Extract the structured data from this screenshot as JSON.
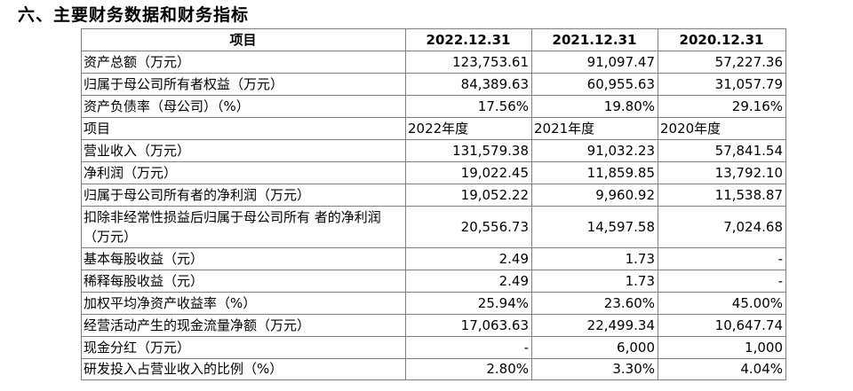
{
  "section_title": "六、主要财务数据和财务指标",
  "table": {
    "header": [
      "项目",
      "2022.12.31",
      "2021.12.31",
      "2020.12.31"
    ],
    "balance_rows": [
      {
        "label": "资产总额（万元）",
        "v1": "123,753.61",
        "v2": "91,097.47",
        "v3": "57,227.36"
      },
      {
        "label": "归属于母公司所有者权益（万元）",
        "v1": "84,389.63",
        "v2": "60,955.63",
        "v3": "31,057.79"
      },
      {
        "label": "资产负债率（母公司）（%）",
        "v1": "17.56%",
        "v2": "19.80%",
        "v3": "29.16%"
      }
    ],
    "subheader": [
      "项目",
      "2022年度",
      "2021年度",
      "2020年度"
    ],
    "income_rows": [
      {
        "label": "营业收入（万元）",
        "v1": "131,579.38",
        "v2": "91,032.23",
        "v3": "57,841.54"
      },
      {
        "label": "净利润（万元）",
        "v1": "19,022.45",
        "v2": "11,859.85",
        "v3": "13,792.10"
      },
      {
        "label": "归属于母公司所有者的净利润（万元）",
        "v1": "19,052.22",
        "v2": "9,960.92",
        "v3": "11,538.87"
      },
      {
        "label": "扣除非经常性损益后归属于母公司所有 者的净利润（万元）",
        "v1": "20,556.73",
        "v2": "14,597.58",
        "v3": "7,024.68"
      },
      {
        "label": "基本每股收益（元）",
        "v1": "2.49",
        "v2": "1.73",
        "v3": "-"
      },
      {
        "label": "稀释每股收益（元）",
        "v1": "2.49",
        "v2": "1.73",
        "v3": "-"
      },
      {
        "label": "加权平均净资产收益率（%）",
        "v1": "25.94%",
        "v2": "23.60%",
        "v3": "45.00%"
      },
      {
        "label": "经营活动产生的现金流量净额（万元）",
        "v1": "17,063.63",
        "v2": "22,499.34",
        "v3": "10,647.74"
      },
      {
        "label": "现金分红（万元）",
        "v1": "-",
        "v2": "6,000",
        "v3": "1,000"
      },
      {
        "label": "研发投入占营业收入的比例（%）",
        "v1": "2.80%",
        "v2": "3.30%",
        "v3": "4.04%"
      }
    ]
  }
}
